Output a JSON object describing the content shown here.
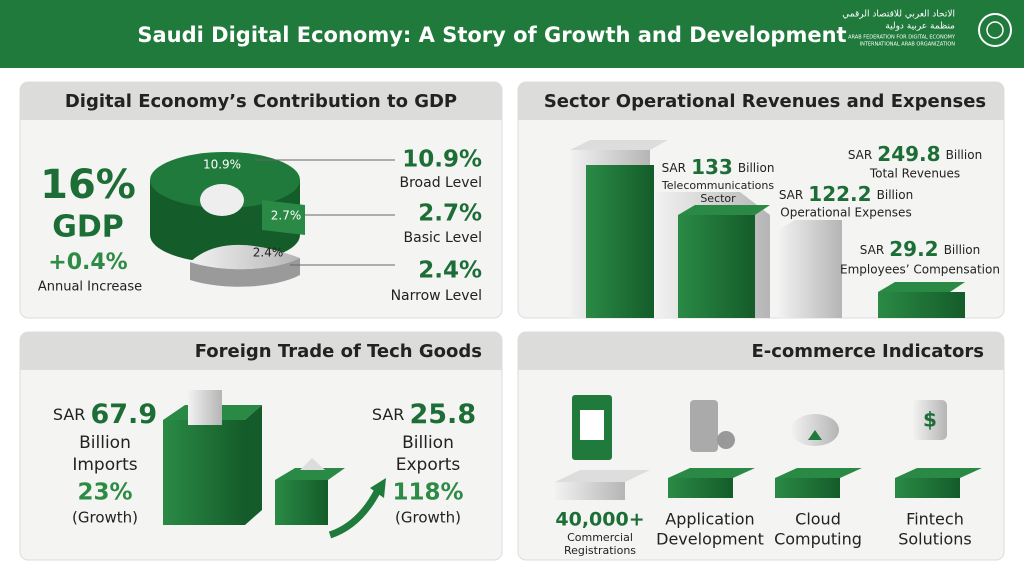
{
  "header": {
    "title": "Saudi Digital Economy: A Story of Growth and Development",
    "logo": {
      "arabic_name": "الاتحاد العربي للاقتصاد الرقمي",
      "arabic_org": "منظمة عربية دولية",
      "english_name": "ARAB FEDERATION FOR DIGITAL ECONOMY",
      "english_org": "INTERNATIONAL ARAB ORGANIZATION"
    }
  },
  "gdp": {
    "title": "Digital Economy’s Contribution to GDP",
    "share": "16%",
    "share_label": "GDP",
    "change": "+0.4%",
    "change_label": "Annual Increase",
    "levels": [
      {
        "slice_label": "10.9%",
        "value": "10.9%",
        "label": "Broad Level"
      },
      {
        "slice_label": "2.7%",
        "value": "2.7%",
        "label": "Basic Level"
      },
      {
        "slice_label": "2.4%",
        "value": "2.4%",
        "label": "Narrow Level"
      }
    ]
  },
  "sector": {
    "title": "Sector Operational Revenues and Expenses",
    "items": [
      {
        "currency": "SAR",
        "value": "133",
        "unit": "Billion",
        "lines": [
          "Telecommunications",
          "Sector"
        ]
      },
      {
        "currency": "SAR",
        "value": "249.8",
        "unit": "Billion",
        "lines": [
          "Total Revenues"
        ]
      },
      {
        "currency": "SAR",
        "value": "122.2",
        "unit": "Billion",
        "lines": [
          "Operational Expenses"
        ]
      },
      {
        "currency": "SAR",
        "value": "29.2",
        "unit": "Billion",
        "lines": [
          "Employees’ Compensation"
        ]
      }
    ]
  },
  "trade": {
    "title": "Foreign Trade of Tech Goods",
    "imports": {
      "currency": "SAR",
      "value": "67.9",
      "unit": "Billion",
      "label": "Imports",
      "growth": "23%",
      "growth_label": "(Growth)"
    },
    "exports": {
      "currency": "SAR",
      "value": "25.8",
      "unit": "Billion",
      "label": "Exports",
      "growth": "118%",
      "growth_label": "(Growth)"
    }
  },
  "ecommerce": {
    "title": "E-commerce Indicators",
    "registrations": {
      "value": "40,000+",
      "lines": [
        "Commercial",
        "Registrations"
      ]
    },
    "items": [
      {
        "lines": [
          "Application",
          "Development"
        ]
      },
      {
        "lines": [
          "Cloud",
          "Computing"
        ]
      },
      {
        "lines": [
          "Fintech",
          "Solutions"
        ]
      }
    ]
  }
}
